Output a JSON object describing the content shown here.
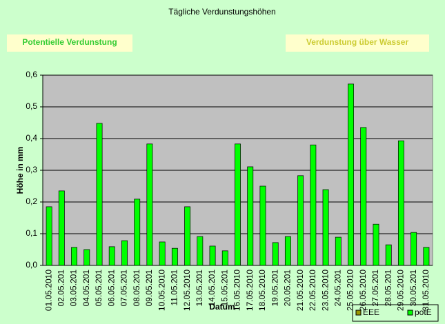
{
  "chart_data": {
    "type": "bar",
    "title": "Tägliche Verdunstungshöhen",
    "buttons": [
      "Potentielle Verdunstung",
      "Verdunstung über Wasser"
    ],
    "xlabel": "Datum",
    "ylabel": "Höhe in mm",
    "categories": [
      "01.05.2010",
      "02.05.201",
      "03.05.201",
      "04.05.201",
      "05.05.201",
      "06.05.201",
      "07.05.201",
      "08.05.201",
      "09.05.201",
      "10.05.2010",
      "11.05.201",
      "12.05.2010",
      "13.05.201",
      "14.05.201",
      "15.05.201",
      "16.05.2010",
      "17.05.2010",
      "18.05.2010",
      "19.05.201",
      "20.05.201",
      "21.05.2010",
      "22.05.2010",
      "23.05.2010",
      "24.05.201",
      "25.05.2010",
      "26.05.2010",
      "27.05.201",
      "28.05.201",
      "29.05.2010",
      "30.05.201",
      "31.05.2010"
    ],
    "series": [
      {
        "name": "EEE",
        "color": "#999900",
        "values": [
          null,
          null,
          null,
          null,
          null,
          null,
          null,
          null,
          null,
          null,
          null,
          null,
          null,
          null,
          null,
          null,
          null,
          null,
          null,
          null,
          null,
          null,
          null,
          null,
          null,
          null,
          null,
          null,
          null,
          null,
          null
        ]
      },
      {
        "name": "potE",
        "color": "#00ff00",
        "values": [
          0.185,
          0.235,
          0.057,
          0.05,
          0.448,
          0.059,
          0.078,
          0.209,
          0.383,
          0.074,
          0.054,
          0.185,
          0.091,
          0.061,
          0.046,
          0.383,
          0.311,
          0.25,
          0.072,
          0.091,
          0.283,
          0.38,
          0.239,
          0.089,
          0.572,
          0.435,
          0.13,
          0.065,
          0.393,
          0.104,
          0.057
        ]
      }
    ],
    "ylim": [
      0,
      0.6
    ],
    "yticks": [
      {
        "value": 0,
        "label": "0,0"
      },
      {
        "value": 0.1,
        "label": "0,1"
      },
      {
        "value": 0.2,
        "label": "0,2"
      },
      {
        "value": 0.3,
        "label": "0,3"
      },
      {
        "value": 0.4,
        "label": "0,4"
      },
      {
        "value": 0.5,
        "label": "0,5"
      },
      {
        "value": 0.6,
        "label": "0,6"
      }
    ],
    "grid": true
  }
}
